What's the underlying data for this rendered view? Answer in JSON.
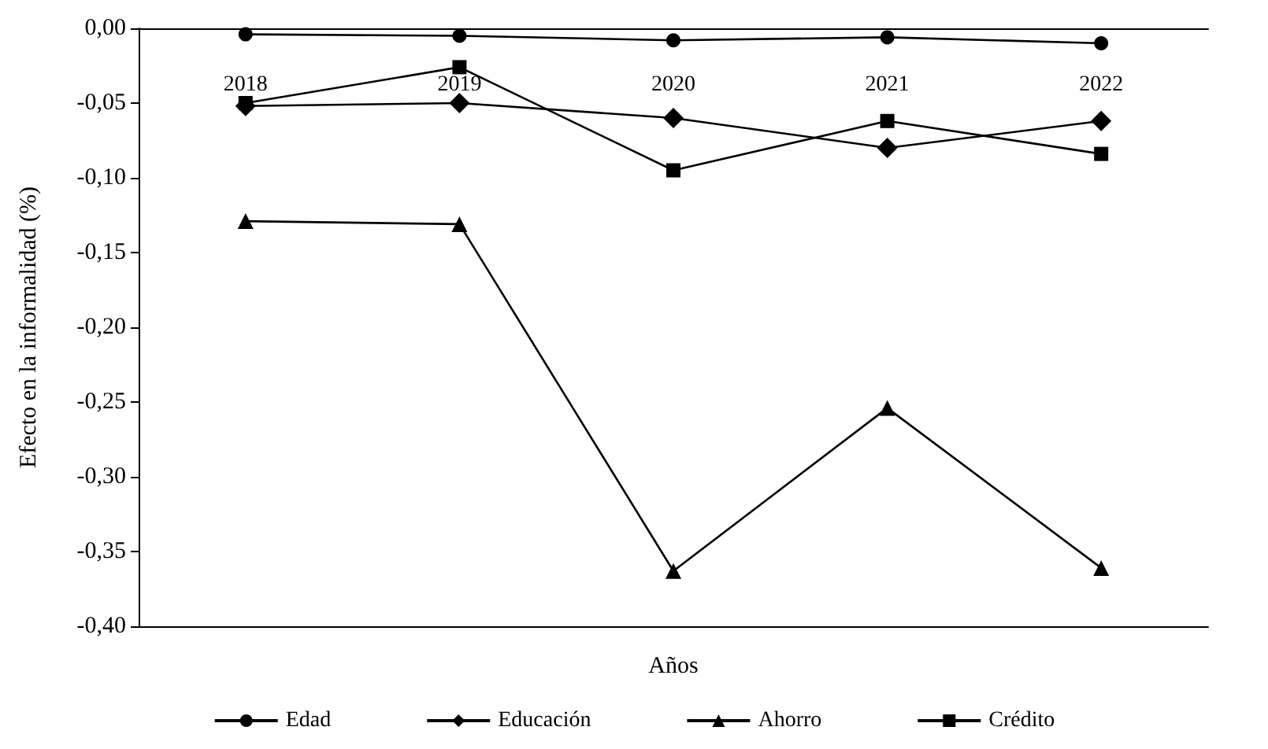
{
  "chart_data": {
    "type": "line",
    "xlabel": "Años",
    "ylabel": "Efecto en la informalidad (%)",
    "categories": [
      "2018",
      "2019",
      "2020",
      "2021",
      "2022"
    ],
    "series": [
      {
        "name": "Edad",
        "color": "#000000",
        "marker": "circle",
        "values": [
          -0.004,
          -0.005,
          -0.008,
          -0.006,
          -0.01
        ]
      },
      {
        "name": "Educación",
        "color": "#000000",
        "marker": "diamond",
        "values": [
          -0.052,
          -0.05,
          -0.06,
          -0.08,
          -0.062
        ]
      },
      {
        "name": "Ahorro",
        "color": "#000000",
        "marker": "triangle",
        "values": [
          -0.129,
          -0.131,
          -0.363,
          -0.254,
          -0.361
        ]
      },
      {
        "name": "Crédito",
        "color": "#000000",
        "marker": "square",
        "values": [
          -0.05,
          -0.026,
          -0.095,
          -0.062,
          -0.084
        ]
      }
    ],
    "ylim": [
      -0.4,
      0
    ],
    "yticks": [
      {
        "value": 0,
        "label": "0,00"
      },
      {
        "value": -0.05,
        "label": "-0,05"
      },
      {
        "value": -0.1,
        "label": "-0,10"
      },
      {
        "value": -0.15,
        "label": "-0,15"
      },
      {
        "value": -0.2,
        "label": "-0,20"
      },
      {
        "value": -0.25,
        "label": "-0,25"
      },
      {
        "value": -0.3,
        "label": "-0,30"
      },
      {
        "value": -0.35,
        "label": "-0,35"
      },
      {
        "value": -0.4,
        "label": "-0,40"
      }
    ],
    "grid": false,
    "legend": "bottom",
    "line_style": "solid"
  }
}
